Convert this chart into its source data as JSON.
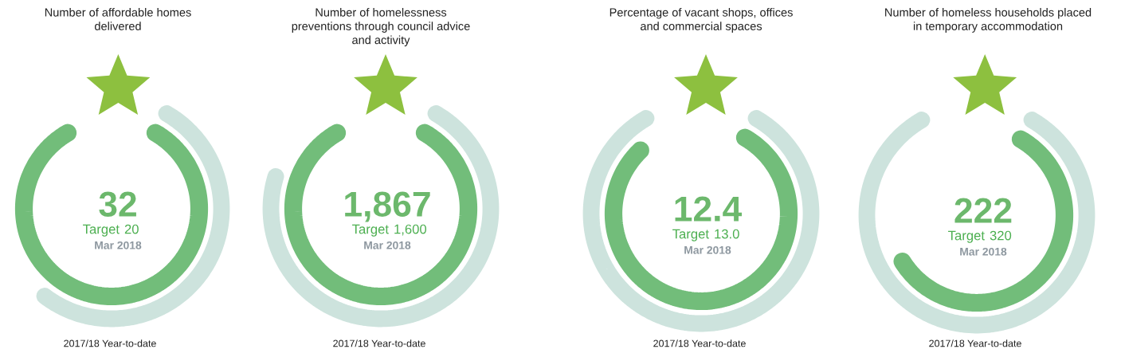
{
  "chart_data": [
    {
      "type": "other",
      "title": "Number of affordable homes\ndelivered",
      "categories": [
        null,
        "Target"
      ],
      "values": [
        32,
        20
      ],
      "value_labels": [
        "32",
        "20"
      ],
      "colors": [
        "#72bd7a",
        "#cde3dd"
      ],
      "annotations": [
        "Mar 2018",
        "2017/18 Year-to-date"
      ]
    },
    {
      "type": "other",
      "title": "Number of homelessness\npreventions through council advice\nand activity",
      "categories": [
        null,
        "Target"
      ],
      "values": [
        1867,
        1600
      ],
      "value_labels": [
        "1,867",
        "1,600"
      ],
      "colors": [
        "#72bd7a",
        "#cde3dd"
      ],
      "annotations": [
        "Mar 2018",
        "2017/18 Year-to-date"
      ]
    },
    {
      "type": "other",
      "title": "Percentage of vacant shops, offices\nand commercial spaces",
      "categories": [
        null,
        "Target"
      ],
      "values": [
        12.4,
        13.0
      ],
      "value_labels": [
        "12.4",
        "13.0"
      ],
      "colors": [
        "#72bd7a",
        "#cde3dd"
      ],
      "annotations": [
        "Mar 2018",
        "2017/18 Year-to-date"
      ]
    },
    {
      "type": "other",
      "title": "Number of homeless households placed\nin temporary accommodation",
      "categories": [
        null,
        "Target"
      ],
      "values": [
        222,
        320
      ],
      "value_labels": [
        "222",
        "320"
      ],
      "colors": [
        "#72bd7a",
        "#cde3dd"
      ],
      "annotations": [
        "Mar 2018",
        "2017/18 Year-to-date"
      ]
    }
  ]
}
